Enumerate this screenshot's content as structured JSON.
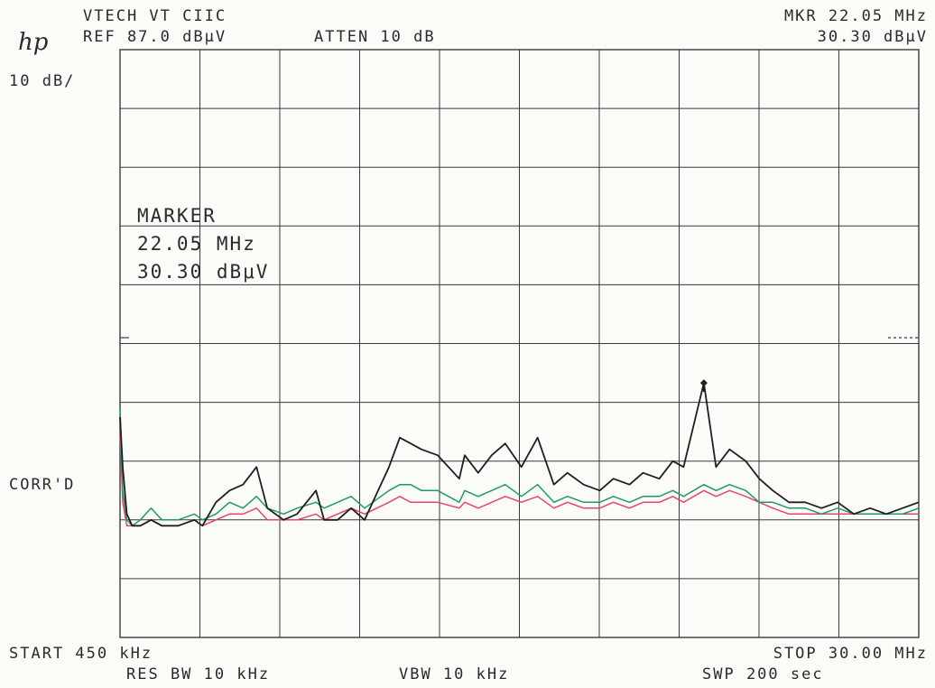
{
  "header": {
    "title": "VTECH VT CIIC",
    "ref_level": "REF 87.0 dBμV",
    "attenuation": "ATTEN 10 dB",
    "marker_freq": "MKR 22.05 MHz",
    "marker_level": "30.30 dBμV",
    "logo": "hp"
  },
  "scale": "10 dB/",
  "marker_box": {
    "title": "MARKER",
    "freq": "22.05 MHz",
    "level": "30.30 dBμV"
  },
  "side_label": "CORR'D",
  "footer": {
    "start": "START 450 kHz",
    "stop": "STOP 30.00 MHz",
    "res_bw": "RES BW 10 kHz",
    "vbw": "VBW 10 kHz",
    "sweep": "SWP 200 sec"
  },
  "colors": {
    "trace_peak": "#1f1f1f",
    "trace_quasi": "#1e9a6a",
    "trace_avg": "#e8456a",
    "grid": "#3a3a3a"
  },
  "chart_data": {
    "type": "line",
    "xlabel": "",
    "ylabel": "",
    "x_unit": "MHz",
    "y_unit": "dBμV",
    "xlim": [
      0.45,
      30.0
    ],
    "ylim": [
      -13.0,
      87.0
    ],
    "grid": true,
    "x_divisions": 10,
    "y_divisions": 10,
    "marker": {
      "x": 22.05,
      "y": 30.3
    },
    "limit_line_y": 38.0,
    "series": [
      {
        "id": "peak",
        "x": [
          0.45,
          0.55,
          0.7,
          0.9,
          1.2,
          1.6,
          2.0,
          2.6,
          3.2,
          3.5,
          4.0,
          4.5,
          5.0,
          5.5,
          5.9,
          6.5,
          7.0,
          7.7,
          8.0,
          8.5,
          9.0,
          9.5,
          10.4,
          10.8,
          11.2,
          11.6,
          12.2,
          13.0,
          13.2,
          13.7,
          14.2,
          14.7,
          15.3,
          15.9,
          16.5,
          17.0,
          17.6,
          18.2,
          18.7,
          19.3,
          19.8,
          20.4,
          20.9,
          21.3,
          22.05,
          22.5,
          23.0,
          23.6,
          24.1,
          24.6,
          25.2,
          25.8,
          26.4,
          27.0,
          27.6,
          28.2,
          28.8,
          29.4,
          30.0
        ],
        "y": [
          24.5,
          16,
          8,
          6,
          6,
          7,
          6,
          6,
          7,
          6,
          10,
          12,
          13,
          16,
          9,
          7,
          8,
          12,
          7,
          7,
          9,
          7,
          16,
          21,
          20,
          19,
          18,
          14,
          18,
          15,
          18,
          20,
          16,
          21,
          13,
          15,
          13,
          12,
          14,
          13,
          15,
          14,
          17,
          16,
          30.3,
          16,
          19,
          17,
          14,
          12,
          10,
          10,
          9,
          10,
          8,
          9,
          8,
          9,
          10
        ]
      },
      {
        "id": "quasi-peak",
        "x": [
          0.45,
          0.55,
          0.7,
          0.9,
          1.2,
          1.6,
          2.0,
          2.6,
          3.2,
          3.5,
          4.0,
          4.5,
          5.0,
          5.5,
          5.9,
          6.5,
          7.0,
          7.7,
          8.0,
          8.5,
          9.0,
          9.5,
          10.4,
          10.8,
          11.2,
          11.6,
          12.2,
          13.0,
          13.2,
          13.7,
          14.2,
          14.7,
          15.3,
          15.9,
          16.5,
          17.0,
          17.6,
          18.2,
          18.7,
          19.3,
          19.8,
          20.4,
          20.9,
          21.3,
          22.05,
          22.5,
          23.0,
          23.6,
          24.1,
          24.6,
          25.2,
          25.8,
          26.4,
          27.0,
          27.6,
          28.2,
          28.8,
          29.4,
          30.0
        ],
        "y": [
          26,
          12,
          7,
          6,
          7,
          9,
          7,
          7,
          8,
          7,
          8,
          10,
          9,
          11,
          9,
          8,
          9,
          10,
          9,
          10,
          11,
          9,
          12,
          13,
          13,
          12,
          12,
          10,
          12,
          11,
          12,
          13,
          11,
          13,
          10,
          11,
          10,
          10,
          11,
          10,
          11,
          11,
          12,
          11,
          13,
          12,
          13,
          12,
          10,
          10,
          9,
          9,
          8,
          9,
          8,
          8,
          8,
          8,
          9
        ]
      },
      {
        "id": "average",
        "x": [
          0.45,
          0.55,
          0.7,
          0.9,
          1.2,
          1.6,
          2.0,
          2.6,
          3.2,
          3.5,
          4.0,
          4.5,
          5.0,
          5.5,
          5.9,
          6.5,
          7.0,
          7.7,
          8.0,
          8.5,
          9.0,
          9.5,
          10.4,
          10.8,
          11.2,
          11.6,
          12.2,
          13.0,
          13.2,
          13.7,
          14.2,
          14.7,
          15.3,
          15.9,
          16.5,
          17.0,
          17.6,
          18.2,
          18.7,
          19.3,
          19.8,
          20.4,
          20.9,
          21.3,
          22.05,
          22.5,
          23.0,
          23.6,
          24.1,
          24.6,
          25.2,
          25.8,
          26.4,
          27.0,
          27.6,
          28.2,
          28.8,
          29.4,
          30.0
        ],
        "y": [
          22,
          10,
          6,
          6,
          6,
          7,
          6,
          6,
          7,
          6,
          7,
          8,
          8,
          9,
          7,
          7,
          7,
          8,
          7,
          8,
          9,
          8,
          10,
          11,
          10,
          10,
          10,
          9,
          10,
          9,
          10,
          11,
          10,
          11,
          9,
          10,
          9,
          9,
          10,
          9,
          10,
          10,
          11,
          10,
          12,
          11,
          12,
          11,
          10,
          9,
          8,
          8,
          8,
          8,
          8,
          8,
          8,
          8,
          8
        ]
      }
    ]
  }
}
